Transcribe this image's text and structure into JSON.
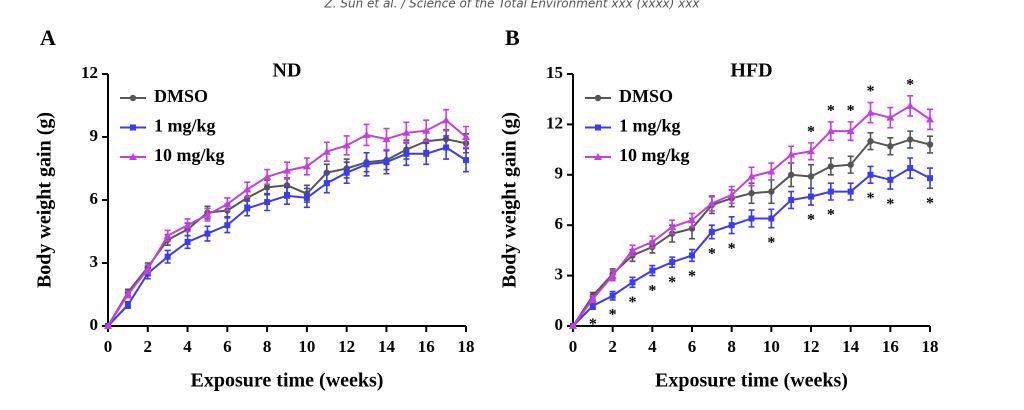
{
  "running_head": "Z. Sun et al. / Science of the Total Environment xxx (xxxx) xxx",
  "chart_data": [
    {
      "type": "line",
      "panel": "A",
      "title": "ND",
      "x_label": "Exposure time (weeks)",
      "y_label": "Body weight gain (g)",
      "x": [
        0,
        1,
        2,
        3,
        4,
        5,
        6,
        7,
        8,
        9,
        10,
        11,
        12,
        13,
        14,
        15,
        16,
        17,
        18
      ],
      "xlim": [
        0,
        18
      ],
      "xticks": [
        0,
        2,
        4,
        6,
        8,
        10,
        12,
        14,
        16,
        18
      ],
      "ylim": [
        0,
        12
      ],
      "yticks": [
        0,
        3,
        6,
        9,
        12
      ],
      "legend": "upper-left",
      "series": [
        {
          "name": "DMSO",
          "color": "#555555",
          "marker": "circle",
          "values": [
            0,
            1.6,
            2.8,
            4.1,
            4.6,
            5.4,
            5.5,
            6.1,
            6.6,
            6.7,
            6.3,
            7.3,
            7.5,
            7.8,
            7.9,
            8.4,
            8.8,
            8.9,
            8.7
          ],
          "errors": [
            0,
            0.15,
            0.2,
            0.25,
            0.3,
            0.3,
            0.3,
            0.35,
            0.35,
            0.35,
            0.4,
            0.4,
            0.45,
            0.45,
            0.45,
            0.45,
            0.45,
            0.45,
            0.45
          ]
        },
        {
          "name": "1 mg/kg",
          "color": "#3b3bf0",
          "marker": "square",
          "values": [
            0,
            1.0,
            2.5,
            3.3,
            4.0,
            4.4,
            4.8,
            5.6,
            5.9,
            6.2,
            6.1,
            6.8,
            7.3,
            7.7,
            7.8,
            8.2,
            8.2,
            8.5,
            7.9
          ],
          "errors": [
            0,
            0.15,
            0.25,
            0.3,
            0.3,
            0.35,
            0.35,
            0.35,
            0.4,
            0.4,
            0.45,
            0.45,
            0.5,
            0.55,
            0.55,
            0.55,
            0.5,
            0.55,
            0.55
          ]
        },
        {
          "name": "10 mg/kg",
          "color": "#c43ee0",
          "marker": "triangle",
          "values": [
            0,
            1.5,
            2.7,
            4.3,
            4.8,
            5.3,
            5.8,
            6.5,
            7.1,
            7.4,
            7.6,
            8.3,
            8.6,
            9.1,
            8.9,
            9.2,
            9.3,
            9.8,
            9.0
          ],
          "errors": [
            0,
            0.15,
            0.2,
            0.25,
            0.3,
            0.3,
            0.3,
            0.35,
            0.35,
            0.4,
            0.4,
            0.45,
            0.45,
            0.5,
            0.5,
            0.5,
            0.5,
            0.5,
            0.5
          ]
        }
      ]
    },
    {
      "type": "line",
      "panel": "B",
      "title": "HFD",
      "x_label": "Exposure time (weeks)",
      "y_label": "Body weight gain (g)",
      "x": [
        0,
        1,
        2,
        3,
        4,
        5,
        6,
        7,
        8,
        9,
        10,
        11,
        12,
        13,
        14,
        15,
        16,
        17,
        18
      ],
      "xlim": [
        0,
        18
      ],
      "xticks": [
        0,
        2,
        4,
        6,
        8,
        10,
        12,
        14,
        16,
        18
      ],
      "ylim": [
        0,
        15
      ],
      "yticks": [
        0,
        3,
        6,
        9,
        12,
        15
      ],
      "legend": "upper-left",
      "series": [
        {
          "name": "DMSO",
          "color": "#555555",
          "marker": "circle",
          "values": [
            0,
            1.8,
            3.1,
            4.2,
            4.7,
            5.5,
            5.8,
            7.2,
            7.6,
            7.9,
            8.0,
            9.0,
            8.9,
            9.5,
            9.6,
            11.0,
            10.7,
            11.1,
            10.8
          ],
          "errors": [
            0,
            0.2,
            0.3,
            0.35,
            0.35,
            0.5,
            0.6,
            0.5,
            0.5,
            0.6,
            0.7,
            0.7,
            0.7,
            0.5,
            0.5,
            0.5,
            0.5,
            0.5,
            0.5
          ]
        },
        {
          "name": "1 mg/kg",
          "color": "#3b3bf0",
          "marker": "square",
          "values": [
            0,
            1.2,
            1.8,
            2.6,
            3.3,
            3.8,
            4.2,
            5.6,
            6.0,
            6.4,
            6.4,
            7.5,
            7.7,
            8.0,
            8.0,
            9.0,
            8.7,
            9.4,
            8.8
          ],
          "errors": [
            0,
            0.2,
            0.25,
            0.3,
            0.3,
            0.3,
            0.35,
            0.4,
            0.5,
            0.5,
            0.55,
            0.5,
            0.5,
            0.5,
            0.5,
            0.5,
            0.55,
            0.6,
            0.6
          ]
        },
        {
          "name": "10 mg/kg",
          "color": "#c43ee0",
          "marker": "triangle",
          "values": [
            0,
            1.6,
            3.0,
            4.5,
            5.0,
            5.9,
            6.3,
            7.3,
            7.8,
            8.9,
            9.2,
            10.2,
            10.4,
            11.6,
            11.6,
            12.7,
            12.4,
            13.1,
            12.3
          ],
          "errors": [
            0,
            0.2,
            0.3,
            0.3,
            0.35,
            0.4,
            0.4,
            0.45,
            0.5,
            0.55,
            0.5,
            0.5,
            0.5,
            0.55,
            0.55,
            0.6,
            0.6,
            0.6,
            0.6
          ]
        }
      ],
      "significance": {
        "label": "*",
        "below_x": [
          1,
          2,
          3,
          4,
          5,
          6,
          7,
          8,
          10,
          12,
          13,
          15,
          16,
          18
        ],
        "above_x": [
          12,
          13,
          14,
          15,
          17
        ]
      }
    }
  ]
}
